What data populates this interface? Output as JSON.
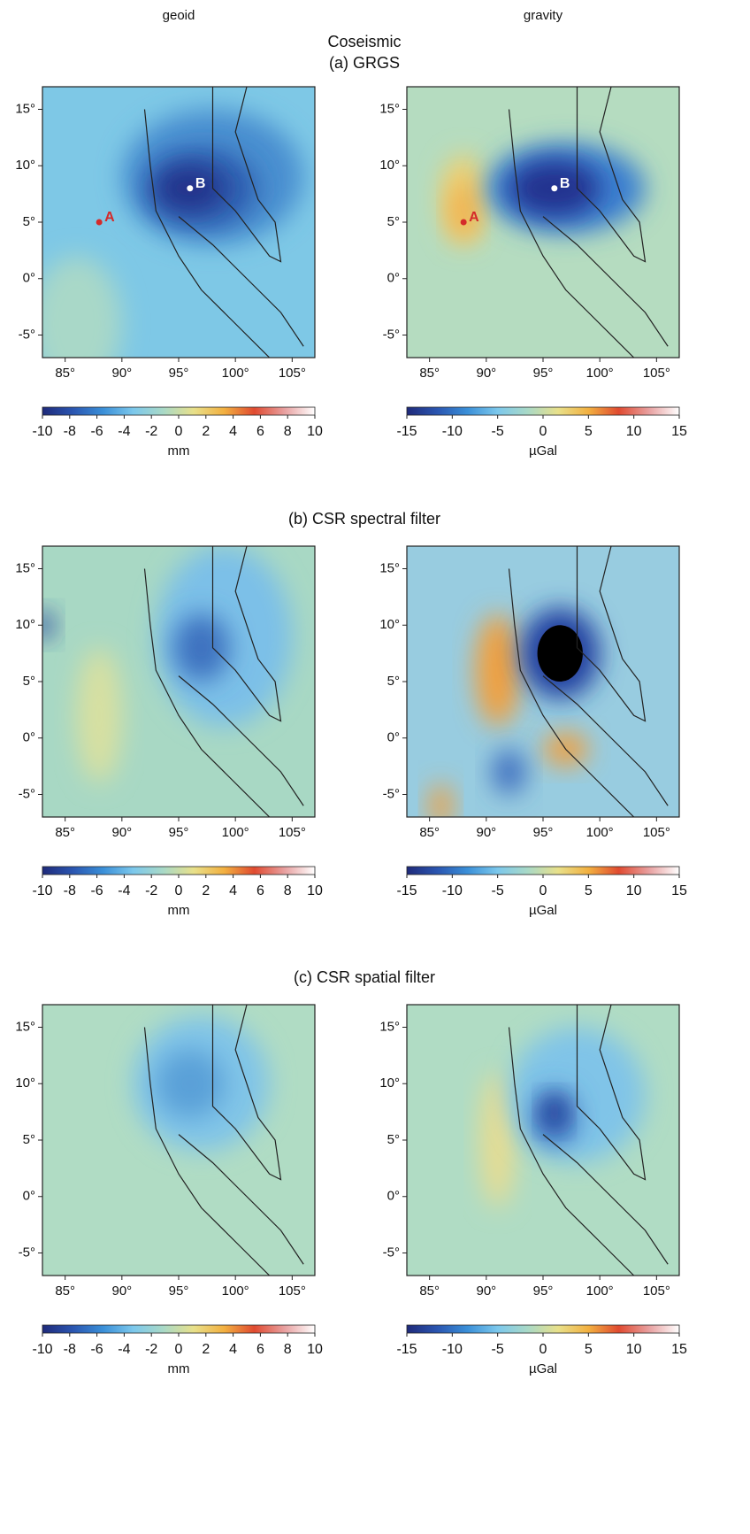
{
  "columns": [
    "geoid",
    "gravity"
  ],
  "heading": "Coseismic",
  "panels": [
    {
      "title": "(a) GRGS"
    },
    {
      "title": "(b) CSR spectral filter"
    },
    {
      "title": "(c) CSR spatial filter"
    }
  ],
  "map_axes": {
    "xlim": [
      83,
      107
    ],
    "ylim": [
      -7,
      17
    ],
    "xticks": [
      {
        "value": 85,
        "label": "85°"
      },
      {
        "value": 90,
        "label": "90°"
      },
      {
        "value": 95,
        "label": "95°"
      },
      {
        "value": 100,
        "label": "100°"
      },
      {
        "value": 105,
        "label": "105°"
      }
    ],
    "yticks": [
      {
        "value": 15,
        "label": "15°"
      },
      {
        "value": 10,
        "label": "10°"
      },
      {
        "value": 5,
        "label": "5°"
      },
      {
        "value": 0,
        "label": "0°"
      },
      {
        "value": -5,
        "label": "-5°"
      }
    ]
  },
  "colorbars": [
    {
      "unit": "mm",
      "lim": [
        -10,
        10
      ],
      "ticks": [
        -10,
        -8,
        -6,
        -4,
        -2,
        0,
        2,
        4,
        6,
        8,
        10
      ]
    },
    {
      "unit": "µGal",
      "lim": [
        -15,
        15
      ],
      "ticks": [
        -15,
        -10,
        -5,
        0,
        5,
        10,
        15
      ]
    }
  ],
  "colormap": [
    "#1f2a7a",
    "#2a55b0",
    "#3a8fd8",
    "#7cc8ec",
    "#a9d9c6",
    "#e8e08a",
    "#f2b040",
    "#e04a30",
    "#e8a0a0",
    "#ffffff"
  ],
  "points": [
    {
      "label": "A",
      "lon": 88,
      "lat": 5,
      "color": "#d42a2a"
    },
    {
      "label": "B",
      "lon": 96,
      "lat": 8,
      "color": "#ffffff"
    }
  ]
}
